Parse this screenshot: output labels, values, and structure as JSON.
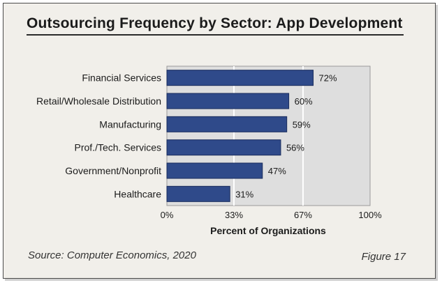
{
  "chart_data": {
    "type": "bar",
    "orientation": "horizontal",
    "title": "Outsourcing Frequency by Sector: App Development",
    "xlabel": "Percent of Organizations",
    "ylabel": "",
    "xlim": [
      0,
      100
    ],
    "ticks": [
      0,
      33,
      67,
      100
    ],
    "tick_labels": [
      "0%",
      "33%",
      "67%",
      "100%"
    ],
    "categories": [
      "Financial Services",
      "Retail/Wholesale Distribution",
      "Manufacturing",
      "Prof./Tech. Services",
      "Government/Nonprofit",
      "Healthcare"
    ],
    "values": [
      72,
      60,
      59,
      56,
      47,
      31
    ],
    "data_labels": [
      "72%",
      "60%",
      "59%",
      "56%",
      "47%",
      "31%"
    ],
    "grid": true,
    "bar_color": "#2f4a8a",
    "plot_background": "#dedede"
  },
  "footer": {
    "source": "Source: Computer Economics, 2020",
    "figure": "Figure 17"
  }
}
